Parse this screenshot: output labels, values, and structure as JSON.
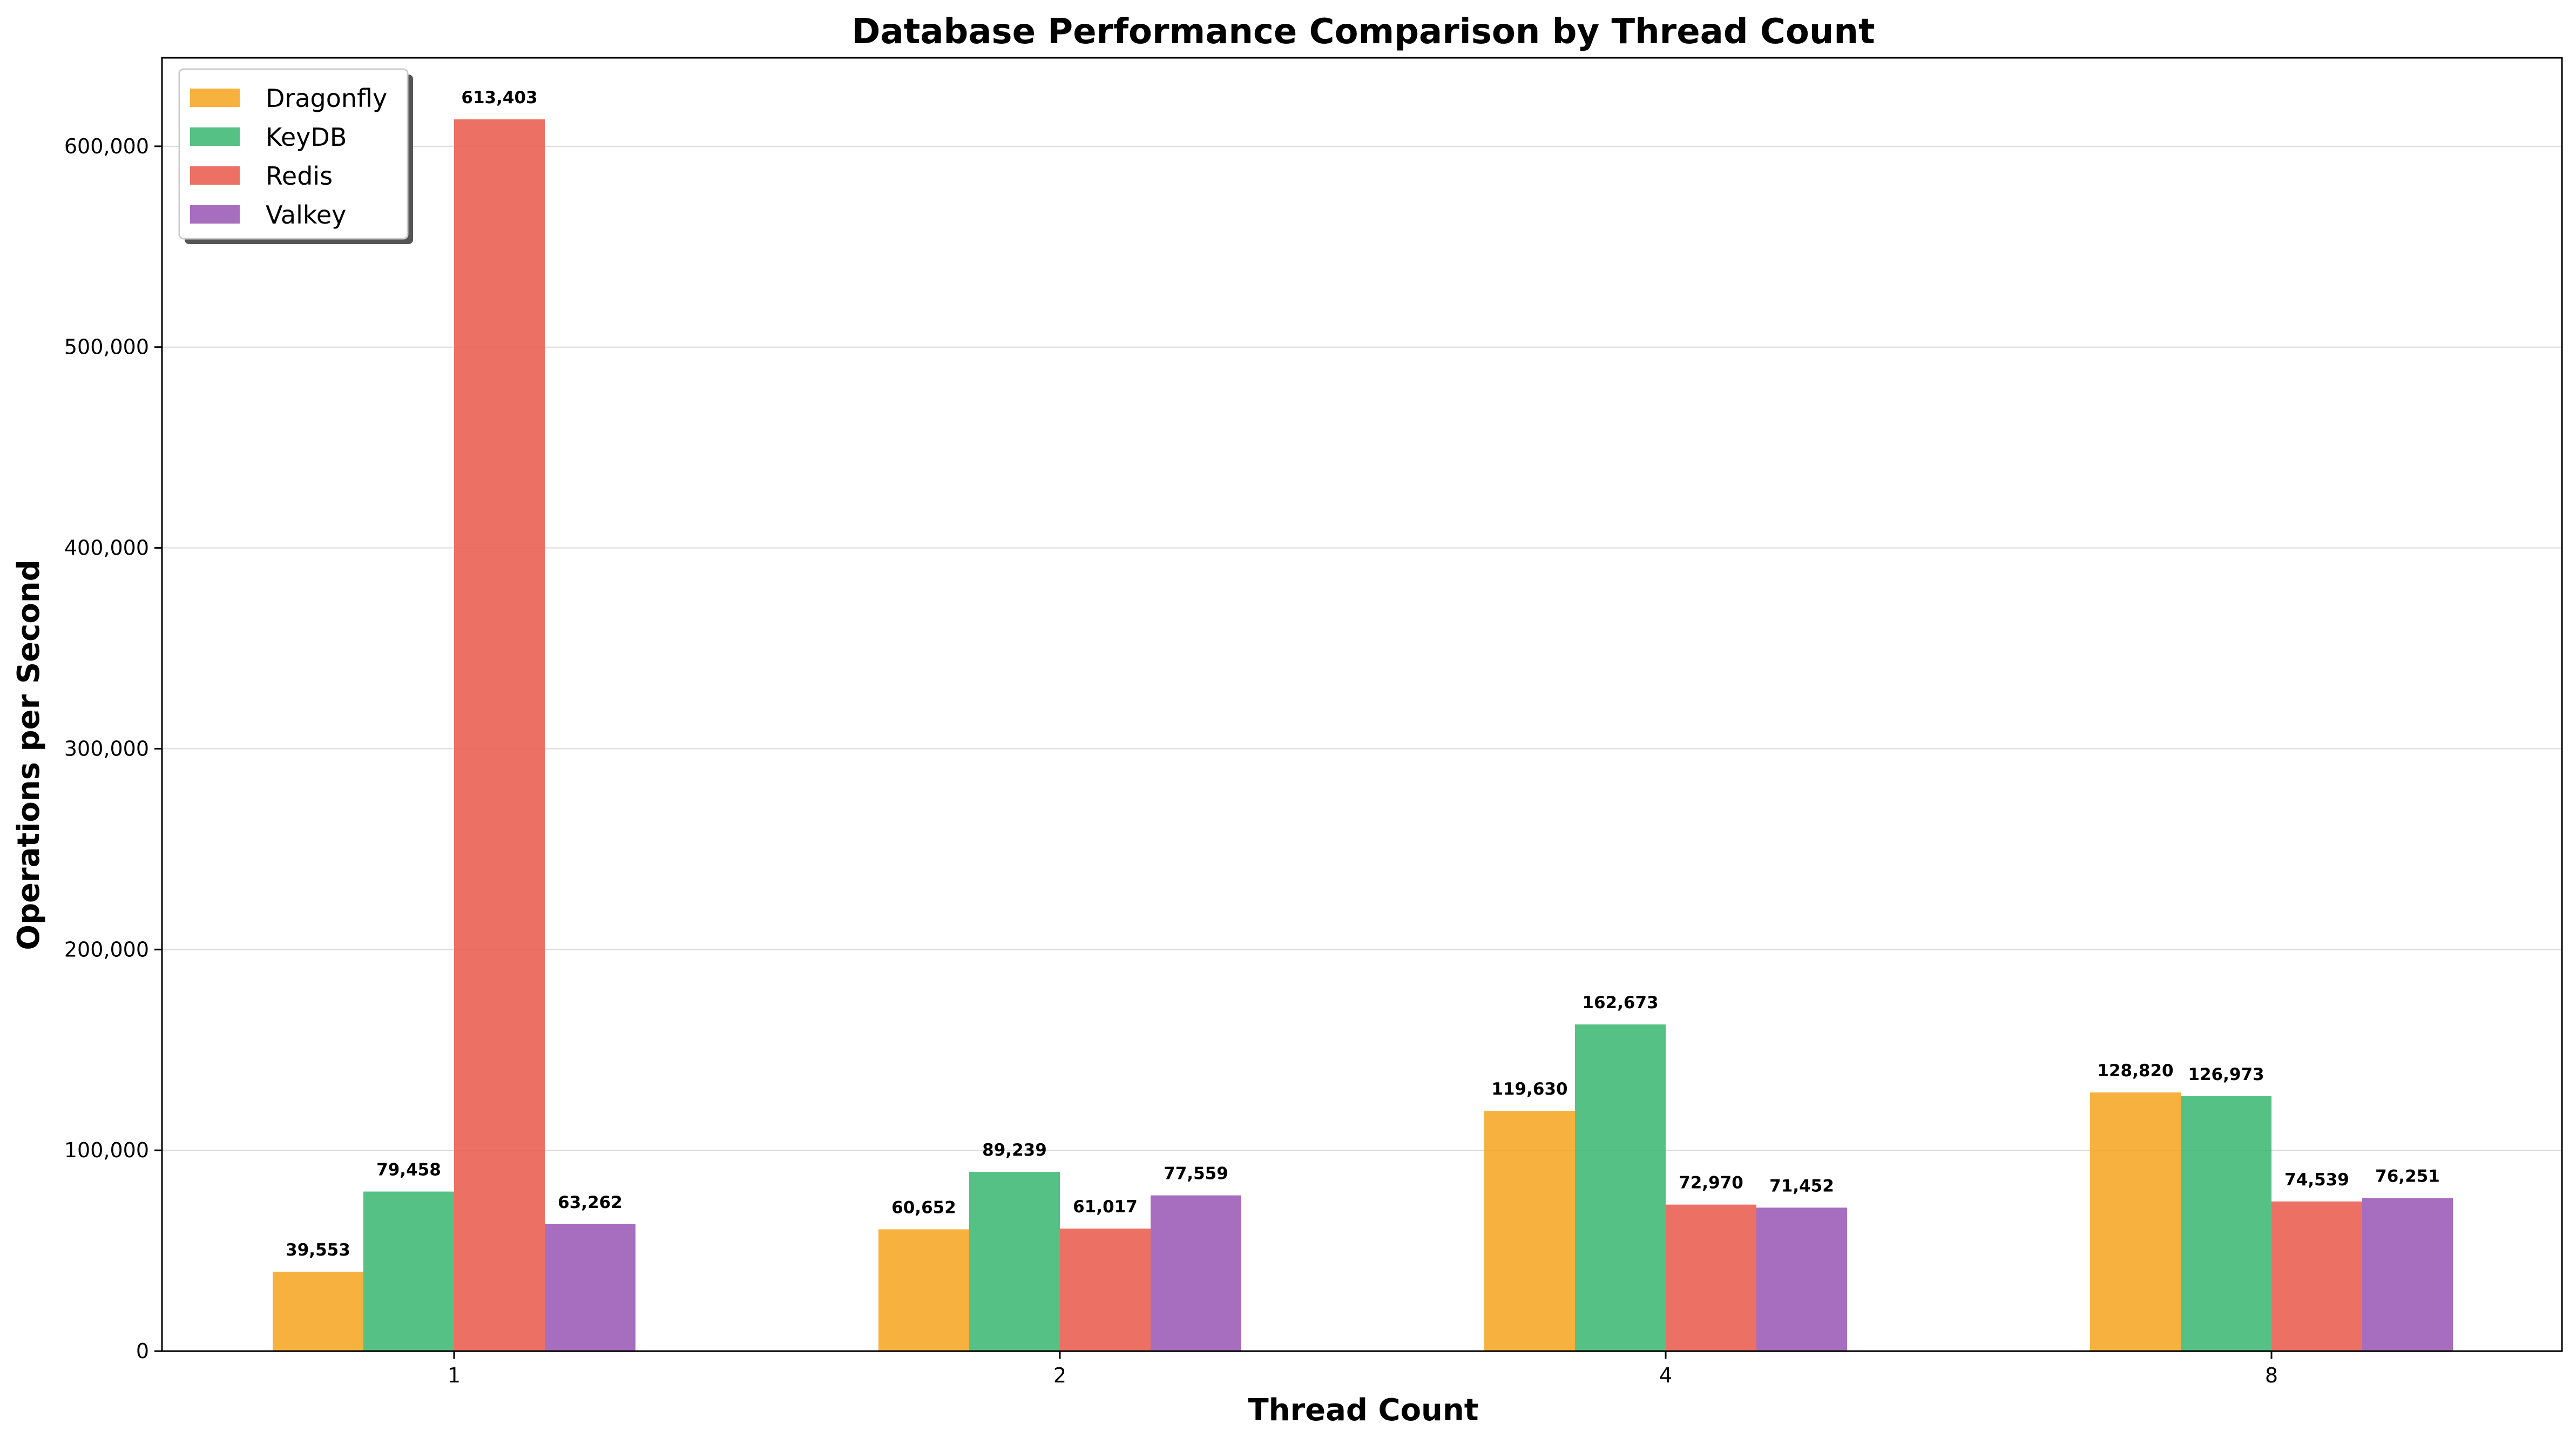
{
  "chart_data": {
    "type": "bar",
    "title": "Database Performance Comparison by Thread Count",
    "xlabel": "Thread Count",
    "ylabel": "Operations per Second",
    "categories": [
      "1",
      "2",
      "4",
      "8"
    ],
    "series": [
      {
        "name": "Dragonfly",
        "color": "#F5A623",
        "values": [
          39553,
          60652,
          119630,
          128820
        ]
      },
      {
        "name": "KeyDB",
        "color": "#3DB873",
        "values": [
          79458,
          89239,
          162673,
          126973
        ]
      },
      {
        "name": "Redis",
        "color": "#E95D4E",
        "values": [
          613403,
          61017,
          72970,
          74539
        ]
      },
      {
        "name": "Valkey",
        "color": "#9B59B6",
        "values": [
          63262,
          77559,
          71452,
          76251
        ]
      }
    ],
    "yticks": [
      0,
      100000,
      200000,
      300000,
      400000,
      500000,
      600000
    ],
    "ytick_labels": [
      "0",
      "100,000",
      "200,000",
      "300,000",
      "400,000",
      "500,000",
      "600,000"
    ],
    "ylim": [
      0,
      644073
    ],
    "grid": "y",
    "legend_position": "top-left"
  }
}
